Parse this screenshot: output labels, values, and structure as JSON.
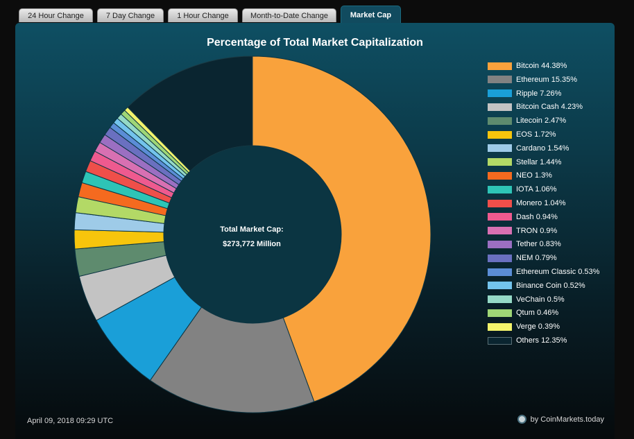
{
  "tabs": [
    {
      "label": "24 Hour Change"
    },
    {
      "label": "7 Day Change"
    },
    {
      "label": "1 Hour Change"
    },
    {
      "label": "Month-to-Date Change"
    },
    {
      "label": "Market Cap"
    }
  ],
  "chart_data": {
    "type": "pie",
    "title": "Percentage of Total Market Capitalization",
    "center_label": {
      "line1": "Total Market Cap:",
      "line2": "$273,772 Million"
    },
    "legend_position": "right",
    "slices": [
      {
        "label": "Bitcoin 44.38%",
        "name": "Bitcoin",
        "value": 44.38,
        "color": "#f9a23c"
      },
      {
        "label": "Ethereum 15.35%",
        "name": "Ethereum",
        "value": 15.35,
        "color": "#828282"
      },
      {
        "label": "Ripple 7.26%",
        "name": "Ripple",
        "value": 7.26,
        "color": "#1a9fd8"
      },
      {
        "label": "Bitcoin Cash 4.23%",
        "name": "Bitcoin Cash",
        "value": 4.23,
        "color": "#c3c3c3"
      },
      {
        "label": "Litecoin 2.47%",
        "name": "Litecoin",
        "value": 2.47,
        "color": "#5e8b6e"
      },
      {
        "label": "EOS 1.72%",
        "name": "EOS",
        "value": 1.72,
        "color": "#f7c50c"
      },
      {
        "label": "Cardano 1.54%",
        "name": "Cardano",
        "value": 1.54,
        "color": "#9ecbe8"
      },
      {
        "label": "Stellar 1.44%",
        "name": "Stellar",
        "value": 1.44,
        "color": "#b3d966"
      },
      {
        "label": "NEO 1.3%",
        "name": "NEO",
        "value": 1.3,
        "color": "#f56a1f"
      },
      {
        "label": "IOTA 1.06%",
        "name": "IOTA",
        "value": 1.06,
        "color": "#2ec4b6"
      },
      {
        "label": "Monero 1.04%",
        "name": "Monero",
        "value": 1.04,
        "color": "#ef4f4a"
      },
      {
        "label": "Dash 0.94%",
        "name": "Dash",
        "value": 0.94,
        "color": "#ee5a8f"
      },
      {
        "label": "TRON 0.9%",
        "name": "TRON",
        "value": 0.9,
        "color": "#d870b2"
      },
      {
        "label": "Tether 0.83%",
        "name": "Tether",
        "value": 0.83,
        "color": "#9b6fc2"
      },
      {
        "label": "NEM 0.79%",
        "name": "NEM",
        "value": 0.79,
        "color": "#6a70c0"
      },
      {
        "label": "Ethereum Classic 0.53%",
        "name": "Ethereum Classic",
        "value": 0.53,
        "color": "#5b8dd6"
      },
      {
        "label": "Binance Coin 0.52%",
        "name": "Binance Coin",
        "value": 0.52,
        "color": "#73c3ec"
      },
      {
        "label": "VeChain 0.5%",
        "name": "VeChain",
        "value": 0.5,
        "color": "#95d9c6"
      },
      {
        "label": "Qtum 0.46%",
        "name": "Qtum",
        "value": 0.46,
        "color": "#9fd676"
      },
      {
        "label": "Verge 0.39%",
        "name": "Verge",
        "value": 0.39,
        "color": "#f3f36b"
      },
      {
        "label": "Others 12.35%",
        "name": "Others",
        "value": 12.35,
        "color": "#0a2530"
      }
    ]
  },
  "footer": {
    "date": "April 09, 2018 09:29 UTC",
    "credit": "by CoinMarkets.today"
  }
}
